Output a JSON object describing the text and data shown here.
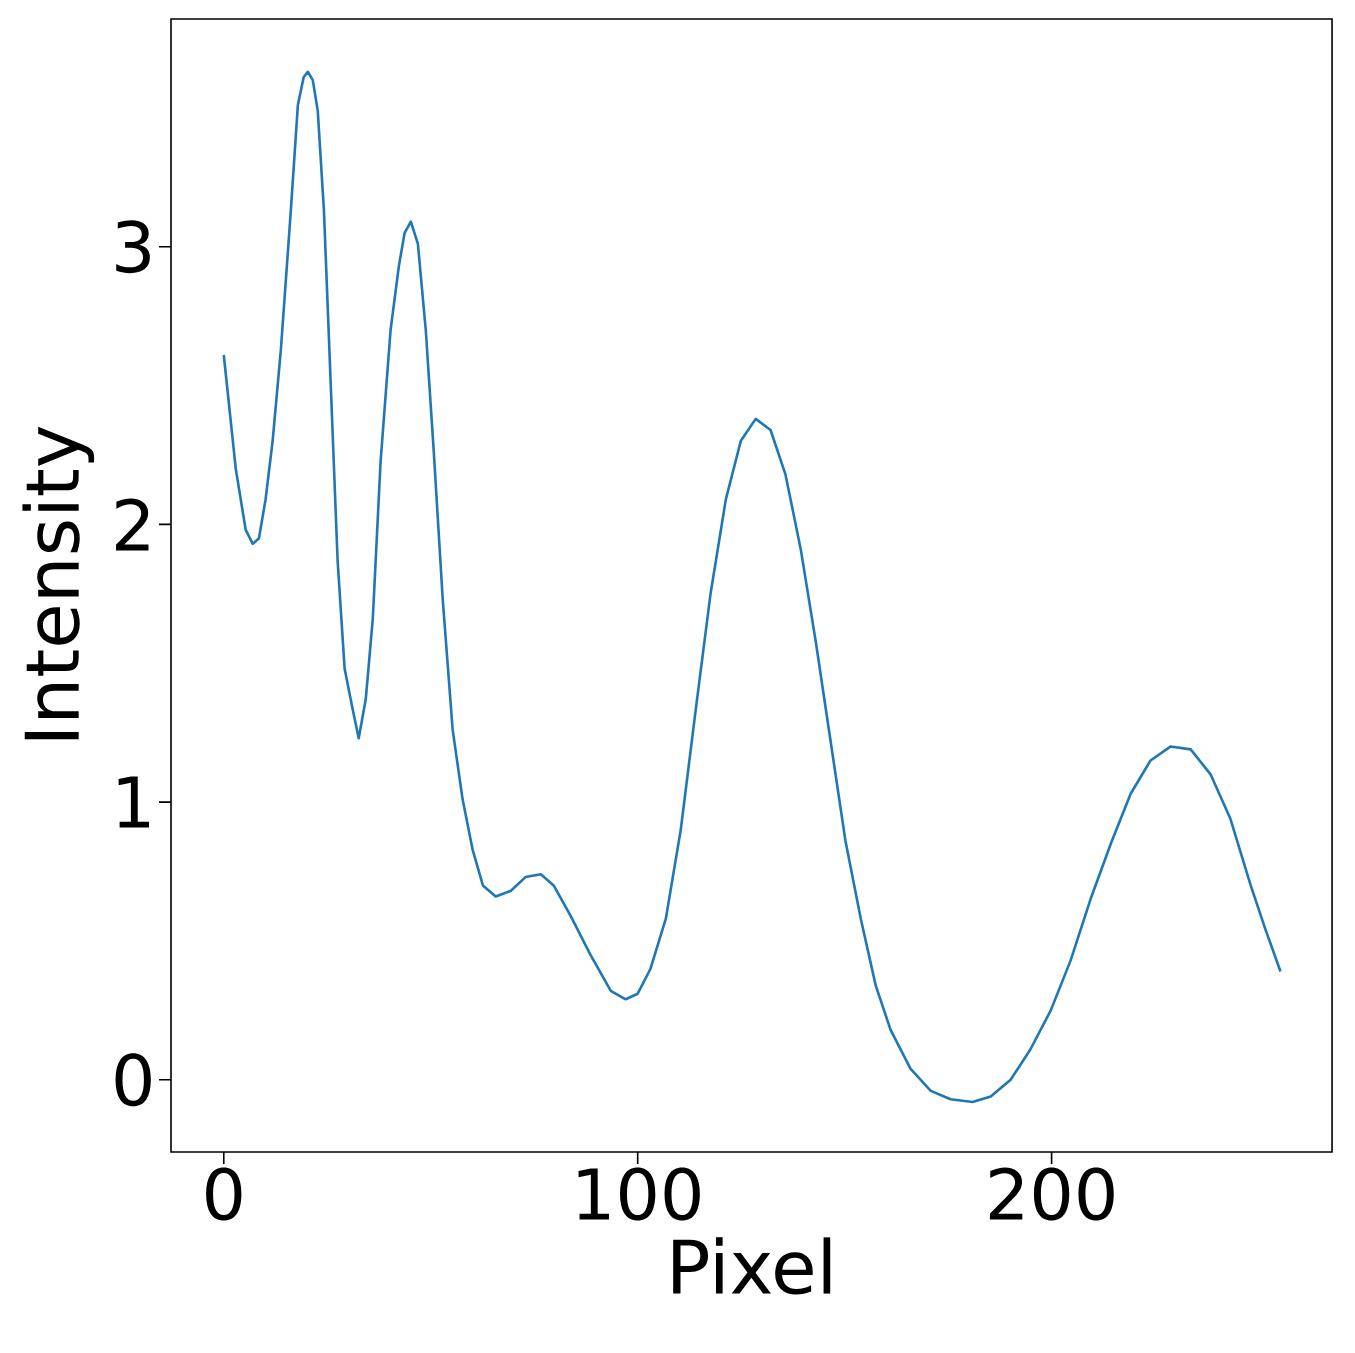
{
  "chart_data": {
    "type": "line",
    "xlabel": "Pixel",
    "ylabel": "Intensity",
    "x": [
      0,
      2.9,
      5.3,
      7,
      8.5,
      10.1,
      11.8,
      13.8,
      16.2,
      17.9,
      19.3,
      20.3,
      21.5,
      22.7,
      24.2,
      25.8,
      27.5,
      29.2,
      31.2,
      32.6,
      34.3,
      36,
      37.9,
      40.3,
      42.3,
      43.7,
      45.2,
      46.9,
      48.8,
      50.7,
      52.9,
      55.3,
      57.7,
      60.1,
      62.6,
      65.7,
      69.3,
      72.9,
      76.6,
      79.7,
      83.8,
      88.6,
      93.5,
      97.1,
      100,
      103.1,
      106.8,
      110.4,
      114,
      117.6,
      121.3,
      124.9,
      128.5,
      132.1,
      135.7,
      139.4,
      143,
      146.6,
      150.2,
      153.9,
      157.5,
      161.1,
      165.9,
      170.8,
      175.6,
      180.9,
      185.3,
      190.1,
      194.9,
      199.8,
      204.6,
      209.4,
      214.3,
      219.1,
      223.9,
      228.7,
      233.6,
      238.4,
      243.2,
      248.1,
      251.7,
      255.3
    ],
    "series": [
      {
        "color": "#1f77b4",
        "values": [
          2.61,
          2.2,
          1.98,
          1.93,
          1.95,
          2.09,
          2.3,
          2.63,
          3.13,
          3.51,
          3.61,
          3.63,
          3.6,
          3.49,
          3.13,
          2.52,
          1.87,
          1.48,
          1.33,
          1.23,
          1.37,
          1.66,
          2.23,
          2.7,
          2.93,
          3.05,
          3.09,
          3.01,
          2.7,
          2.27,
          1.73,
          1.26,
          1.01,
          0.83,
          0.7,
          0.66,
          0.68,
          0.73,
          0.74,
          0.7,
          0.59,
          0.45,
          0.32,
          0.29,
          0.31,
          0.4,
          0.58,
          0.9,
          1.33,
          1.75,
          2.09,
          2.3,
          2.38,
          2.34,
          2.18,
          1.91,
          1.58,
          1.22,
          0.86,
          0.58,
          0.34,
          0.18,
          0.04,
          -0.04,
          -0.07,
          -0.08,
          -0.06,
          0,
          0.11,
          0.25,
          0.43,
          0.65,
          0.85,
          1.03,
          1.15,
          1.2,
          1.19,
          1.1,
          0.94,
          0.7,
          0.54,
          0.39
        ]
      }
    ],
    "xlim": [
      -12.75,
      267.75
    ],
    "ylim": [
      -0.26,
      3.82
    ],
    "xticks": [
      0,
      100,
      200
    ],
    "yticks": [
      0,
      1,
      2,
      3
    ]
  }
}
